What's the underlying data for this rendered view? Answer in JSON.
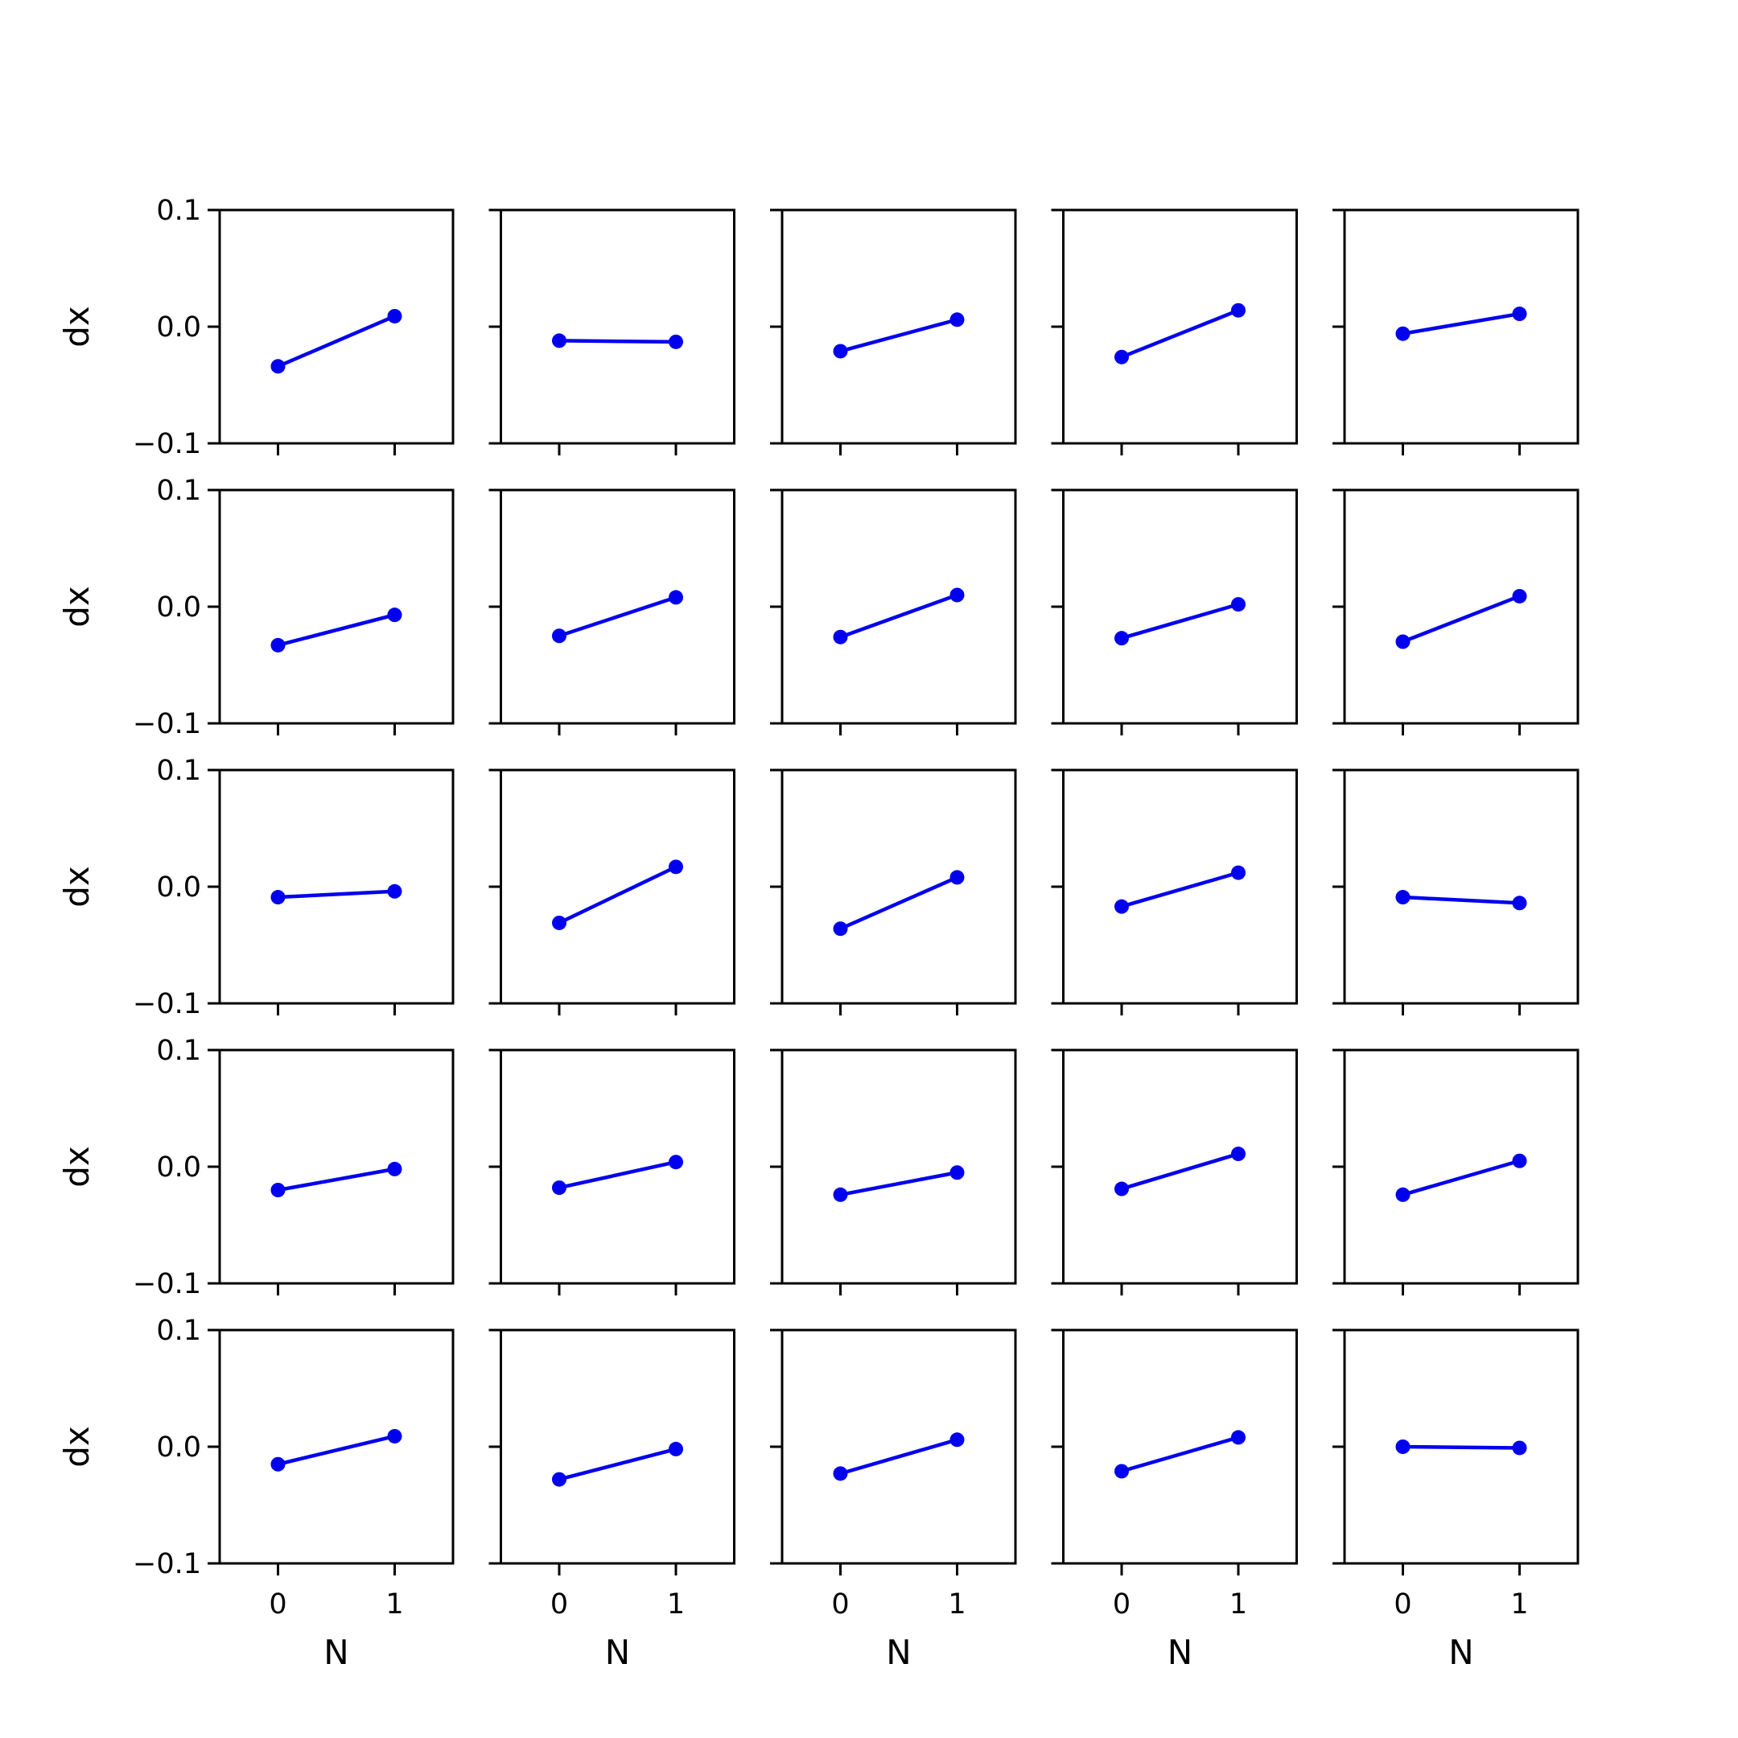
{
  "chart_data": {
    "type": "line",
    "layout": {
      "rows": 5,
      "cols": 5
    },
    "x": [
      0,
      1
    ],
    "xlim": [
      -0.5,
      1.5
    ],
    "ylim": [
      -0.1,
      0.1
    ],
    "xticks": [
      0,
      1
    ],
    "xtick_labels": [
      "0",
      "1"
    ],
    "yticks": [
      -0.1,
      0.0,
      0.1
    ],
    "ytick_labels": [
      "−0.1",
      "0.0",
      "0.1"
    ],
    "xlabel": "N",
    "ylabel": "dx",
    "grid": false,
    "line_color": "#0000ee",
    "marker": "circle",
    "panels": [
      [
        [
          -0.034,
          0.009
        ],
        [
          -0.012,
          -0.013
        ],
        [
          -0.021,
          0.006
        ],
        [
          -0.026,
          0.014
        ],
        [
          -0.006,
          0.011
        ]
      ],
      [
        [
          -0.033,
          -0.007
        ],
        [
          -0.025,
          0.008
        ],
        [
          -0.026,
          0.01
        ],
        [
          -0.027,
          0.002
        ],
        [
          -0.03,
          0.009
        ]
      ],
      [
        [
          -0.009,
          -0.004
        ],
        [
          -0.031,
          0.017
        ],
        [
          -0.036,
          0.008
        ],
        [
          -0.017,
          0.012
        ],
        [
          -0.009,
          -0.014
        ]
      ],
      [
        [
          -0.02,
          -0.002
        ],
        [
          -0.018,
          0.004
        ],
        [
          -0.024,
          -0.005
        ],
        [
          -0.019,
          0.011
        ],
        [
          -0.024,
          0.005
        ]
      ],
      [
        [
          -0.015,
          0.009
        ],
        [
          -0.028,
          -0.002
        ],
        [
          -0.023,
          0.006
        ],
        [
          -0.021,
          0.008
        ],
        [
          0.0,
          -0.001
        ]
      ]
    ]
  }
}
